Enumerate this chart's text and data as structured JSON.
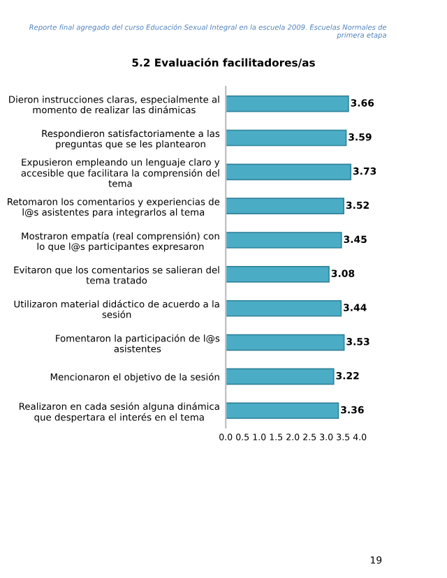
{
  "chart_data": {
    "type": "bar",
    "orientation": "horizontal",
    "title": "5.2 Evaluación facilitadores/as",
    "annotations": [
      "Reporte final agregado del curso Educación Sexual Integral en la escuela 2009. Escuelas Normales de\nprimera etapa",
      "19"
    ],
    "categories": [
      "Dieron instrucciones claras, especialmente al\nmomento de realizar las dinámicas",
      "Respondieron satisfactoriamente a las\npreguntas que se les plantearon",
      "Expusieron empleando un lenguaje claro y\naccesible que facilitara la comprensión del\ntema",
      "Retomaron los comentarios y experiencias de\nl@s asistentes para integrarlos al tema",
      "Mostraron empatía (real comprensión) con\nlo que l@s participantes expresaron",
      "Evitaron que los comentarios se salieran del\ntema tratado",
      "Utilizaron material didáctico de acuerdo a la\nsesión",
      "Fomentaron la participación de l@s\nasistentes",
      "Mencionaron el objetivo de la sesión",
      "Realizaron en cada sesión alguna dinámica\nque despertara el interés en el tema"
    ],
    "values": [
      3.66,
      3.59,
      3.73,
      3.52,
      3.45,
      3.08,
      3.44,
      3.53,
      3.22,
      3.36
    ],
    "color": "#4bacc6",
    "data_labels": true,
    "grid": false,
    "legend": false,
    "xlim": [
      0,
      4
    ],
    "xticks": [
      {
        "value": 0,
        "label": "0.0"
      },
      {
        "value": 0.5,
        "label": "0.5"
      },
      {
        "value": 1,
        "label": "1.0"
      },
      {
        "value": 1.5,
        "label": "1.5"
      },
      {
        "value": 2,
        "label": "2.0"
      },
      {
        "value": 2.5,
        "label": "2.5"
      },
      {
        "value": 3,
        "label": "3.0"
      },
      {
        "value": 3.5,
        "label": "3.5"
      },
      {
        "value": 4,
        "label": "4.0"
      }
    ]
  }
}
